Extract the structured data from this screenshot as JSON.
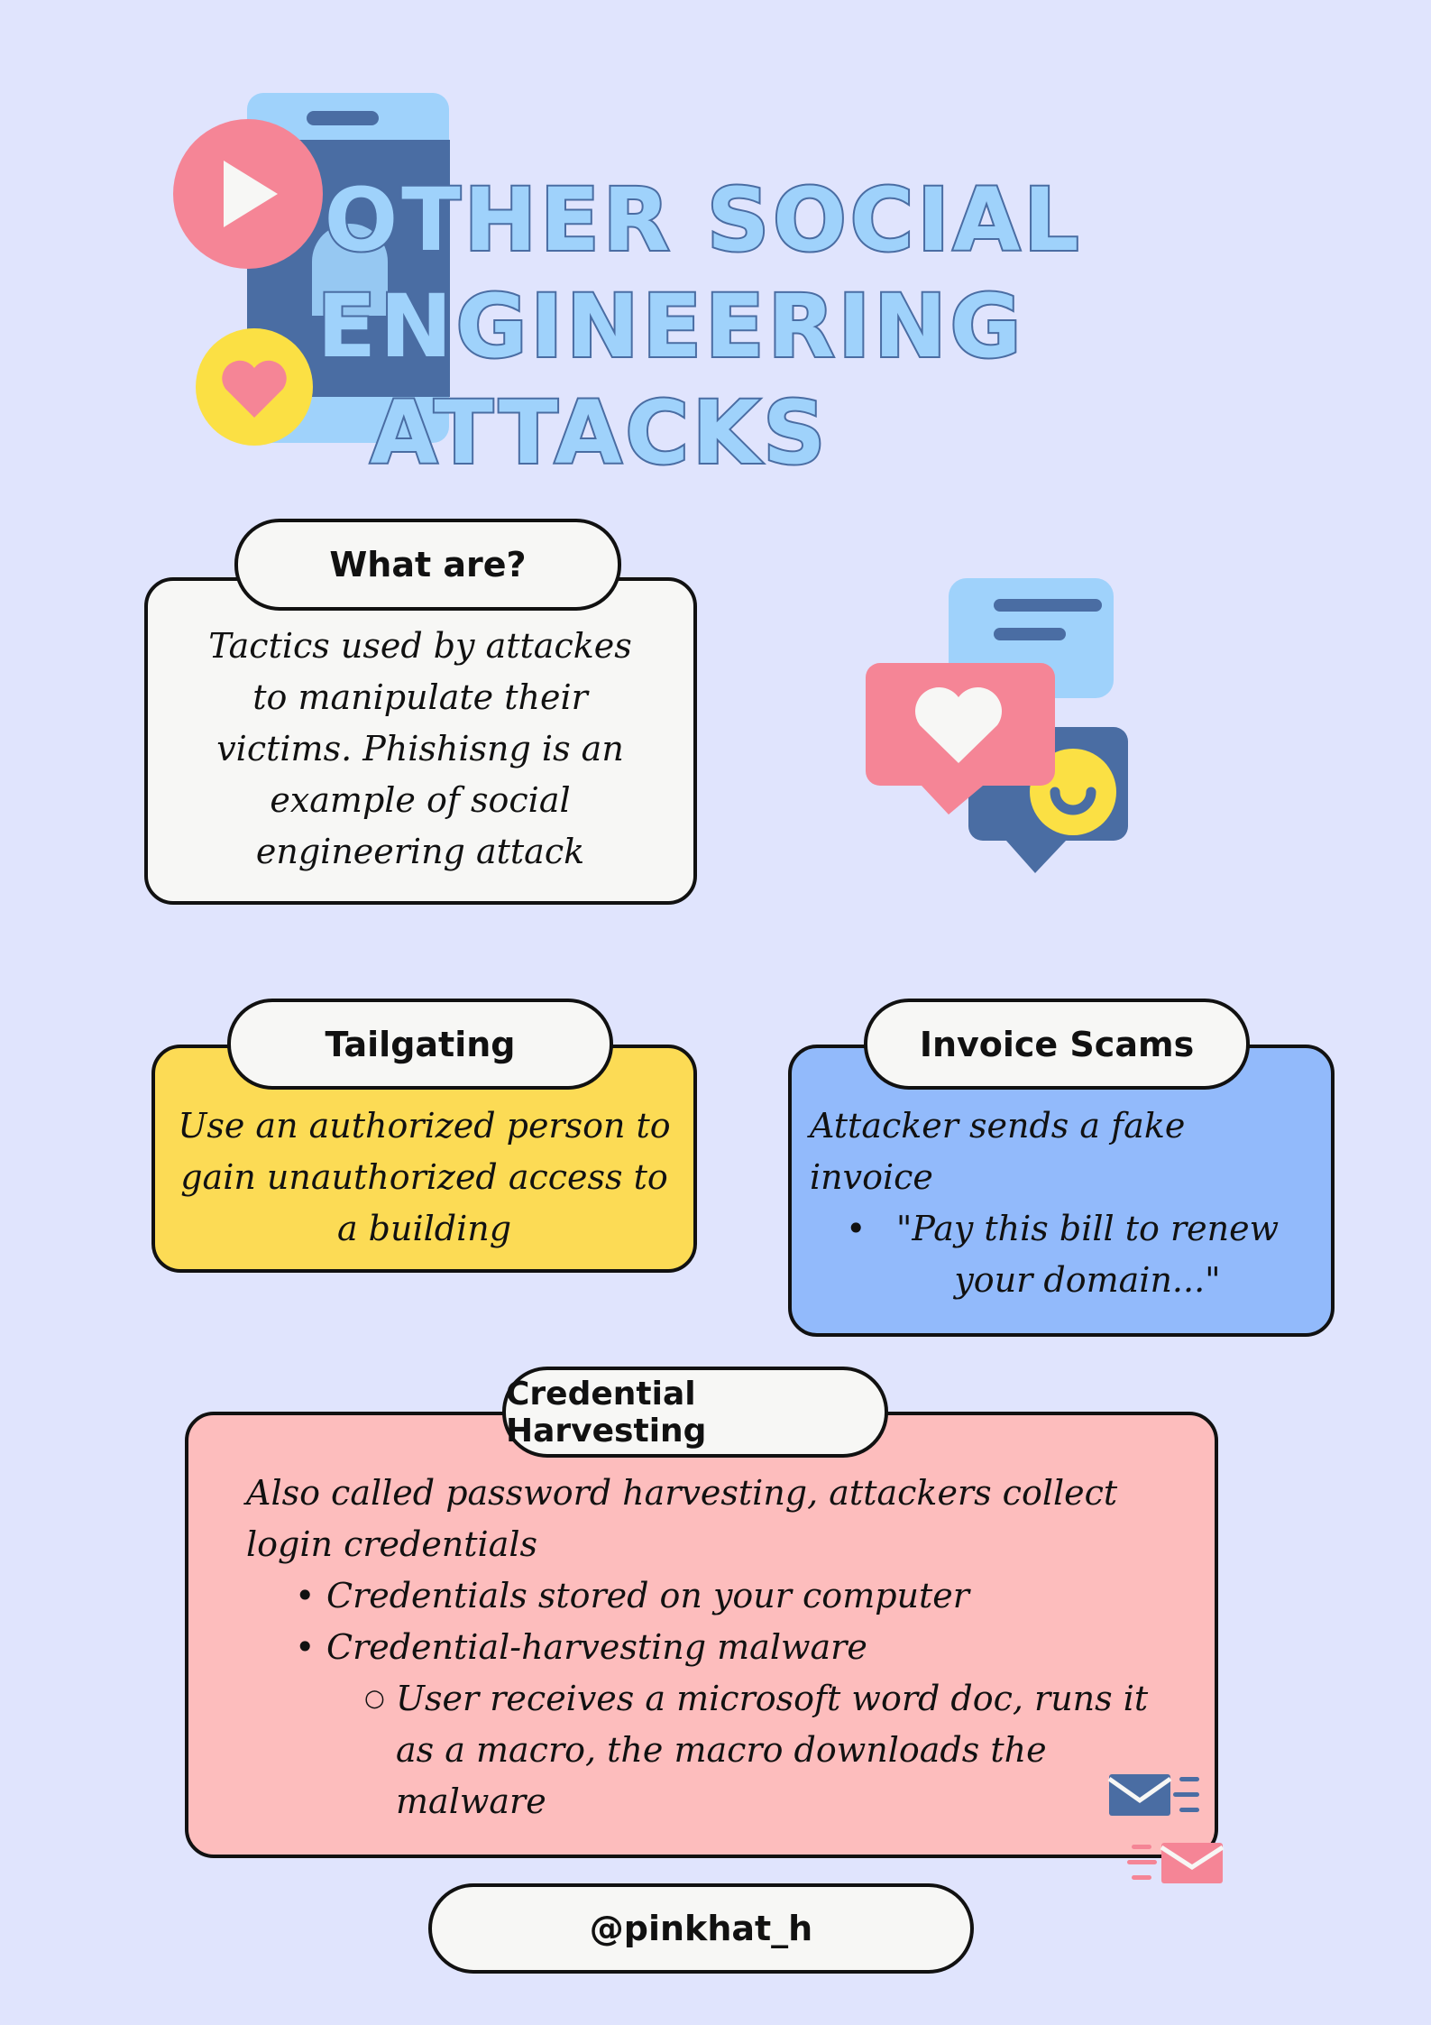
{
  "title": {
    "line1": "Other Social",
    "line2": "Engineering",
    "line3": "Attacks"
  },
  "what_are": {
    "label": "What are?",
    "text": "Tactics used by attackes to manipulate their victims. Phishisng is an example of social engineering attack"
  },
  "tailgating": {
    "label": "Tailgating",
    "text": "Use an authorized person to gain unauthorized access to a building"
  },
  "invoice": {
    "label": "Invoice Scams",
    "text": "Attacker sends a fake invoice",
    "bullet": "\"Pay this bill to renew your domain...\""
  },
  "credential": {
    "label": "Credential Harvesting",
    "text": "Also called password harvesting, attackers collect login credentials",
    "bullets": [
      "Credentials stored on your computer",
      "Credential-harvesting malware"
    ],
    "sub_bullet": "User receives a microsoft word doc, runs it as a macro, the macro downloads the malware"
  },
  "footer": {
    "handle": "@pinkhat_h"
  },
  "colors": {
    "background": "#e0e4fd",
    "card_white": "#f7f7f5",
    "card_yellow": "#fcdb55",
    "card_blue": "#92bafb",
    "card_pink": "#fdbdbd",
    "title_fill": "#9fd2fb",
    "title_stroke": "#4a6da3",
    "phone_dark": "#4a6da3",
    "phone_light": "#9fd2fb",
    "heart_pink": "#f58596",
    "yellow": "#fbe044"
  },
  "icons": [
    "phone-icon",
    "play-icon",
    "heart-badge-icon",
    "chat-bubbles-icon",
    "mail-icon"
  ]
}
